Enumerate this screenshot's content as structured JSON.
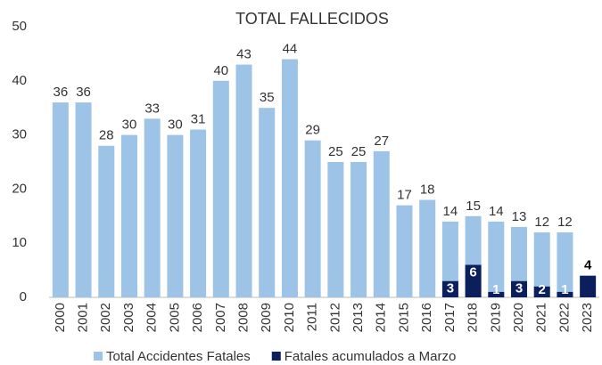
{
  "chart_data": {
    "type": "bar",
    "title": "TOTAL FALLECIDOS",
    "categories": [
      "2000",
      "2001",
      "2002",
      "2003",
      "2004",
      "2005",
      "2006",
      "2007",
      "2008",
      "2009",
      "2010",
      "2011",
      "2012",
      "2013",
      "2014",
      "2015",
      "2016",
      "2017",
      "2018",
      "2019",
      "2020",
      "2021",
      "2022",
      "2023"
    ],
    "series": [
      {
        "name": "Total Accidentes Fatales",
        "color": "#9dc3e6",
        "values": [
          36,
          36,
          28,
          30,
          33,
          30,
          31,
          40,
          43,
          35,
          44,
          29,
          25,
          25,
          27,
          17,
          18,
          14,
          15,
          14,
          13,
          12,
          12,
          null
        ]
      },
      {
        "name": "Fatales acumulados a Marzo",
        "color": "#0b1f5c",
        "values": [
          null,
          null,
          null,
          null,
          null,
          null,
          null,
          null,
          null,
          null,
          null,
          null,
          null,
          null,
          null,
          null,
          null,
          3,
          6,
          1,
          3,
          2,
          1,
          4
        ]
      }
    ],
    "ylim": [
      0,
      50
    ],
    "yticks": [
      0,
      10,
      20,
      30,
      40,
      50
    ],
    "grid": false,
    "legend": "bottom"
  }
}
